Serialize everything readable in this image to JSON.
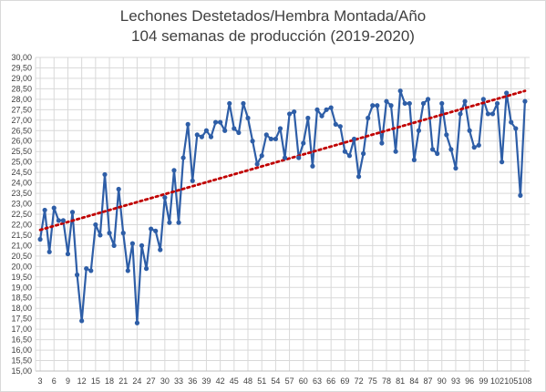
{
  "chart_data": {
    "type": "line",
    "title_lines": [
      "Lechones Destetados/Hembra Montada/Año",
      "104 semanas de producción (2019-2020)"
    ],
    "xlabel": "",
    "ylabel": "",
    "ylim": [
      15,
      30
    ],
    "y_tick_labels": [
      "15,00",
      "15,50",
      "16,00",
      "16,50",
      "17,00",
      "17,50",
      "18,00",
      "18,50",
      "19,00",
      "19,50",
      "20,00",
      "20,50",
      "21,00",
      "21,50",
      "22,00",
      "22,50",
      "23,00",
      "23,50",
      "24,00",
      "24,50",
      "25,00",
      "25,50",
      "26,00",
      "26,50",
      "27,00",
      "27,50",
      "28,00",
      "28,50",
      "29,00",
      "29,50",
      "30,00"
    ],
    "x_tick_labels": [
      "3",
      "6",
      "9",
      "12",
      "15",
      "18",
      "21",
      "24",
      "27",
      "30",
      "33",
      "36",
      "39",
      "42",
      "45",
      "48",
      "51",
      "54",
      "57",
      "60",
      "63",
      "66",
      "69",
      "72",
      "75",
      "78",
      "81",
      "84",
      "87",
      "90",
      "93",
      "96",
      "99",
      "102",
      "105",
      "108"
    ],
    "x_range": [
      2,
      109
    ],
    "grid": true,
    "legend": "none",
    "series": [
      {
        "x": [
          3,
          4,
          5,
          6,
          7,
          8,
          9,
          10,
          11,
          12,
          13,
          14,
          15,
          16,
          17,
          18,
          19,
          20,
          21,
          22,
          23,
          24,
          25,
          26,
          27,
          28,
          29,
          30,
          31,
          32,
          33,
          34,
          35,
          36,
          37,
          38,
          39,
          40,
          41,
          42,
          43,
          44,
          45,
          46,
          47,
          48,
          49,
          50,
          51,
          52,
          53,
          54,
          55,
          56,
          57,
          58,
          59,
          60,
          61,
          62,
          63,
          64,
          65,
          66,
          67,
          68,
          69,
          70,
          71,
          72,
          73,
          74,
          75,
          76,
          77,
          78,
          79,
          80,
          81,
          82,
          83,
          84,
          85,
          86,
          87,
          88,
          89,
          90,
          91,
          92,
          93,
          94,
          95,
          96,
          97,
          98,
          99,
          100,
          101,
          102,
          103,
          104,
          105,
          106,
          107,
          108
        ],
        "values": [
          21.3,
          22.7,
          20.7,
          22.8,
          22.2,
          22.2,
          20.6,
          22.6,
          19.6,
          17.4,
          19.9,
          19.8,
          22.0,
          21.5,
          24.4,
          21.6,
          21.0,
          23.7,
          21.6,
          19.8,
          21.1,
          17.3,
          21.0,
          19.9,
          21.8,
          21.7,
          20.8,
          23.3,
          22.1,
          24.6,
          22.1,
          25.2,
          26.8,
          24.1,
          26.3,
          26.2,
          26.5,
          26.2,
          26.9,
          26.9,
          26.5,
          27.8,
          26.6,
          26.4,
          27.8,
          27.1,
          26.0,
          24.9,
          25.3,
          26.3,
          26.1,
          26.1,
          26.6,
          25.2,
          27.3,
          27.4,
          25.2,
          25.9,
          27.1,
          24.8,
          27.5,
          27.2,
          27.5,
          27.6,
          26.8,
          26.7,
          25.5,
          25.3,
          26.1,
          24.3,
          25.4,
          27.1,
          27.7,
          27.7,
          25.9,
          27.9,
          27.7,
          25.5,
          28.4,
          27.8,
          27.8,
          25.1,
          26.5,
          27.8,
          28.0,
          25.6,
          25.4,
          27.8,
          26.3,
          25.6,
          24.7,
          27.3,
          27.9,
          26.5,
          25.7,
          25.8,
          28.0,
          27.3,
          27.3,
          27.8,
          25.0,
          28.3,
          26.9,
          26.6,
          23.4,
          27.9
        ],
        "color": "#2e5ea7"
      }
    ],
    "trendline": {
      "type": "linear",
      "start_value": 21.75,
      "end_value": 28.4,
      "color": "#c00000"
    }
  }
}
